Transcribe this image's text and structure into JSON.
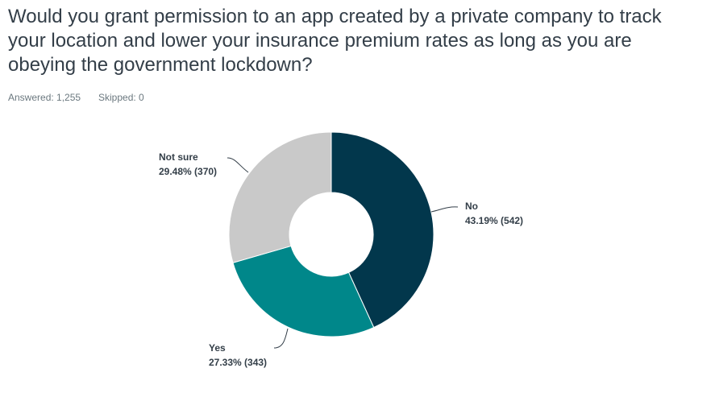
{
  "chart_data": {
    "type": "donut",
    "title": "Would you grant permission to an app created by a private company to track your location and lower your insurance premium rates as long as you are obeying the government lockdown?",
    "annotations": [
      "Answered: 1,255",
      "Skipped: 0"
    ],
    "categories": [
      "No",
      "Yes",
      "Not sure"
    ],
    "values": [
      43.19,
      27.33,
      29.48
    ],
    "value_labels": [
      "43.19% (542)",
      "27.33% (343)",
      "29.48% (370)"
    ],
    "colors": [
      "#02374c",
      "#00878a",
      "#c9c9c9"
    ]
  }
}
